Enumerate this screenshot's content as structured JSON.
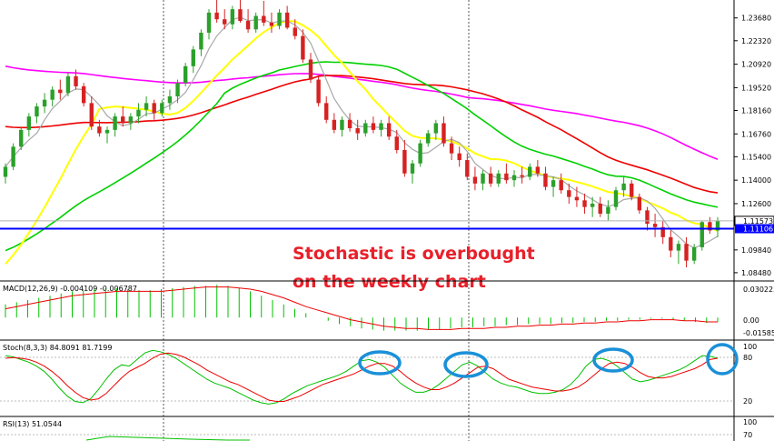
{
  "chart_data": {
    "type": "candlestick",
    "timeframe": "weekly",
    "annotation": {
      "line1": "Stochastic is overbought",
      "line2": "on the weekly chart"
    },
    "price_axis": {
      "ticks": [
        "1.23680",
        "1.22320",
        "1.20920",
        "1.19520",
        "1.18160",
        "1.16760",
        "1.15400",
        "1.14000",
        "1.12600",
        "1.09840",
        "1.08480"
      ],
      "tick_values": [
        1.2368,
        1.2232,
        1.2092,
        1.1952,
        1.1816,
        1.1676,
        1.154,
        1.14,
        1.126,
        1.0984,
        1.0848
      ],
      "range": [
        1.0815,
        1.2475
      ]
    },
    "badges": {
      "current_price": "1.11573",
      "support_level": "1.11106",
      "current_price_value": 1.11573,
      "support_value": 1.11106
    },
    "colors": {
      "bull": "#2aa02a",
      "bear": "#d62222",
      "sma20": "#a8a8a8",
      "sma50": "#ffff00",
      "sma100": "#00d000",
      "sma200": "#ee0000",
      "sma800": "#ff00ff",
      "support": "#0000ff",
      "annotation": "#e8202a",
      "circle": "#1a90d8",
      "macd_hist": "#00c000",
      "macd_signal": "#ee0000",
      "stoch_main": "#00c000",
      "stoch_signal": "#ee0000"
    },
    "macd": {
      "label": "MACD(12,26,9) -0.004109 -0.006787",
      "ticks": [
        "0.030223",
        "0.00",
        "-0.015857"
      ],
      "range": [
        -0.019,
        0.031
      ],
      "histogram": [
        0.012,
        0.014,
        0.016,
        0.018,
        0.02,
        0.022,
        0.024,
        0.025,
        0.026,
        0.027,
        0.027,
        0.026,
        0.025,
        0.025,
        0.026,
        0.027,
        0.028,
        0.029,
        0.029,
        0.03,
        0.029,
        0.027,
        0.024,
        0.02,
        0.016,
        0.012,
        0.008,
        0.004,
        0.0,
        -0.003,
        -0.006,
        -0.008,
        -0.01,
        -0.011,
        -0.012,
        -0.012,
        -0.012,
        -0.012,
        -0.011,
        -0.011,
        -0.01,
        -0.009,
        -0.009,
        -0.008,
        -0.008,
        -0.007,
        -0.007,
        -0.006,
        -0.006,
        -0.006,
        -0.005,
        -0.005,
        -0.004,
        -0.004,
        -0.003,
        -0.003,
        -0.002,
        -0.002,
        -0.001,
        -0.001,
        -0.002,
        -0.003,
        -0.004,
        -0.005,
        -0.004
      ],
      "signal": [
        0.008,
        0.01,
        0.012,
        0.014,
        0.016,
        0.018,
        0.02,
        0.021,
        0.022,
        0.023,
        0.024,
        0.024,
        0.024,
        0.024,
        0.024,
        0.025,
        0.026,
        0.027,
        0.028,
        0.028,
        0.028,
        0.027,
        0.026,
        0.024,
        0.021,
        0.018,
        0.014,
        0.01,
        0.007,
        0.004,
        0.001,
        -0.002,
        -0.004,
        -0.006,
        -0.008,
        -0.009,
        -0.01,
        -0.01,
        -0.011,
        -0.011,
        -0.011,
        -0.01,
        -0.01,
        -0.01,
        -0.009,
        -0.009,
        -0.008,
        -0.008,
        -0.007,
        -0.007,
        -0.006,
        -0.006,
        -0.005,
        -0.005,
        -0.004,
        -0.004,
        -0.003,
        -0.003,
        -0.002,
        -0.002,
        -0.002,
        -0.003,
        -0.003,
        -0.004,
        -0.004
      ]
    },
    "stoch": {
      "label": "Stoch(8,3,3) 84.8091 81.7199",
      "ticks": [
        "100",
        "80",
        "20"
      ],
      "main": [
        86,
        84,
        80,
        76,
        70,
        62,
        50,
        36,
        24,
        16,
        14,
        20,
        34,
        50,
        64,
        72,
        70,
        80,
        90,
        94,
        92,
        88,
        82,
        74,
        66,
        58,
        50,
        44,
        40,
        36,
        30,
        24,
        18,
        14,
        12,
        14,
        20,
        28,
        34,
        40,
        44,
        48,
        52,
        56,
        62,
        70,
        78,
        80,
        76,
        68,
        56,
        44,
        36,
        30,
        30,
        34,
        42,
        52,
        62,
        72,
        76,
        70,
        60,
        50,
        44,
        40,
        38,
        34,
        30,
        28,
        28,
        30,
        34,
        42,
        54,
        70,
        80,
        82,
        78,
        70,
        60,
        50,
        46,
        48,
        52,
        56,
        60,
        64,
        70,
        78,
        86,
        85,
        82
      ],
      "signal": [
        82,
        83,
        82,
        80,
        76,
        70,
        62,
        52,
        40,
        30,
        22,
        18,
        20,
        28,
        40,
        52,
        62,
        68,
        74,
        82,
        88,
        90,
        88,
        84,
        78,
        72,
        64,
        58,
        52,
        46,
        42,
        36,
        30,
        24,
        18,
        16,
        16,
        20,
        24,
        30,
        36,
        42,
        46,
        50,
        54,
        58,
        64,
        70,
        74,
        74,
        70,
        62,
        52,
        44,
        38,
        34,
        34,
        38,
        44,
        52,
        60,
        68,
        70,
        66,
        58,
        50,
        46,
        42,
        38,
        36,
        34,
        32,
        32,
        34,
        38,
        46,
        56,
        66,
        74,
        76,
        74,
        68,
        60,
        54,
        52,
        52,
        54,
        58,
        62,
        66,
        72,
        80,
        82
      ]
    },
    "rsi": {
      "label": "RSI(13) 51.0544",
      "ticks": [
        "100",
        "70"
      ]
    },
    "candles": [
      [
        1.142,
        1.15,
        1.138,
        1.148
      ],
      [
        1.148,
        1.162,
        1.146,
        1.16
      ],
      [
        1.16,
        1.172,
        1.158,
        1.17
      ],
      [
        1.17,
        1.18,
        1.166,
        1.178
      ],
      [
        1.178,
        1.186,
        1.174,
        1.184
      ],
      [
        1.184,
        1.192,
        1.18,
        1.188
      ],
      [
        1.188,
        1.196,
        1.184,
        1.194
      ],
      [
        1.194,
        1.2,
        1.188,
        1.192
      ],
      [
        1.192,
        1.204,
        1.19,
        1.202
      ],
      [
        1.202,
        1.206,
        1.194,
        1.196
      ],
      [
        1.196,
        1.198,
        1.184,
        1.186
      ],
      [
        1.186,
        1.19,
        1.17,
        1.172
      ],
      [
        1.172,
        1.176,
        1.166,
        1.168
      ],
      [
        1.168,
        1.172,
        1.162,
        1.17
      ],
      [
        1.17,
        1.18,
        1.166,
        1.178
      ],
      [
        1.178,
        1.184,
        1.172,
        1.174
      ],
      [
        1.174,
        1.18,
        1.17,
        1.178
      ],
      [
        1.178,
        1.186,
        1.174,
        1.182
      ],
      [
        1.182,
        1.19,
        1.178,
        1.186
      ],
      [
        1.186,
        1.188,
        1.176,
        1.18
      ],
      [
        1.18,
        1.188,
        1.178,
        1.186
      ],
      [
        1.186,
        1.194,
        1.182,
        1.19
      ],
      [
        1.19,
        1.2,
        1.186,
        1.198
      ],
      [
        1.198,
        1.21,
        1.196,
        1.208
      ],
      [
        1.208,
        1.22,
        1.204,
        1.218
      ],
      [
        1.218,
        1.23,
        1.214,
        1.228
      ],
      [
        1.228,
        1.242,
        1.224,
        1.24
      ],
      [
        1.24,
        1.248,
        1.234,
        1.236
      ],
      [
        1.236,
        1.242,
        1.23,
        1.233
      ],
      [
        1.233,
        1.244,
        1.23,
        1.242
      ],
      [
        1.242,
        1.248,
        1.234,
        1.235
      ],
      [
        1.235,
        1.242,
        1.228,
        1.23
      ],
      [
        1.23,
        1.24,
        1.228,
        1.238
      ],
      [
        1.238,
        1.247,
        1.232,
        1.234
      ],
      [
        1.234,
        1.24,
        1.228,
        1.232
      ],
      [
        1.232,
        1.242,
        1.23,
        1.24
      ],
      [
        1.24,
        1.244,
        1.23,
        1.231
      ],
      [
        1.231,
        1.236,
        1.224,
        1.226
      ],
      [
        1.226,
        1.23,
        1.21,
        1.212
      ],
      [
        1.212,
        1.216,
        1.198,
        1.2
      ],
      [
        1.2,
        1.202,
        1.184,
        1.186
      ],
      [
        1.186,
        1.19,
        1.174,
        1.176
      ],
      [
        1.176,
        1.18,
        1.168,
        1.17
      ],
      [
        1.17,
        1.178,
        1.166,
        1.176
      ],
      [
        1.176,
        1.18,
        1.169,
        1.171
      ],
      [
        1.171,
        1.176,
        1.164,
        1.168
      ],
      [
        1.168,
        1.176,
        1.166,
        1.174
      ],
      [
        1.174,
        1.178,
        1.168,
        1.17
      ],
      [
        1.17,
        1.176,
        1.166,
        1.174
      ],
      [
        1.174,
        1.178,
        1.164,
        1.166
      ],
      [
        1.166,
        1.17,
        1.156,
        1.158
      ],
      [
        1.158,
        1.164,
        1.142,
        1.144
      ],
      [
        1.144,
        1.152,
        1.138,
        1.15
      ],
      [
        1.15,
        1.164,
        1.148,
        1.162
      ],
      [
        1.162,
        1.17,
        1.16,
        1.168
      ],
      [
        1.168,
        1.176,
        1.164,
        1.174
      ],
      [
        1.174,
        1.178,
        1.16,
        1.162
      ],
      [
        1.162,
        1.166,
        1.152,
        1.156
      ],
      [
        1.156,
        1.16,
        1.148,
        1.152
      ],
      [
        1.152,
        1.156,
        1.14,
        1.142
      ],
      [
        1.142,
        1.148,
        1.134,
        1.138
      ],
      [
        1.138,
        1.146,
        1.134,
        1.144
      ],
      [
        1.144,
        1.148,
        1.136,
        1.138
      ],
      [
        1.138,
        1.146,
        1.136,
        1.144
      ],
      [
        1.144,
        1.15,
        1.138,
        1.14
      ],
      [
        1.14,
        1.146,
        1.136,
        1.143
      ],
      [
        1.143,
        1.148,
        1.138,
        1.142
      ],
      [
        1.142,
        1.15,
        1.14,
        1.148
      ],
      [
        1.148,
        1.152,
        1.142,
        1.144
      ],
      [
        1.144,
        1.148,
        1.134,
        1.136
      ],
      [
        1.136,
        1.142,
        1.13,
        1.14
      ],
      [
        1.14,
        1.144,
        1.132,
        1.134
      ],
      [
        1.134,
        1.138,
        1.126,
        1.13
      ],
      [
        1.13,
        1.136,
        1.124,
        1.128
      ],
      [
        1.128,
        1.132,
        1.12,
        1.124
      ],
      [
        1.124,
        1.13,
        1.118,
        1.126
      ],
      [
        1.126,
        1.13,
        1.118,
        1.12
      ],
      [
        1.12,
        1.128,
        1.116,
        1.124
      ],
      [
        1.124,
        1.136,
        1.122,
        1.134
      ],
      [
        1.134,
        1.142,
        1.13,
        1.138
      ],
      [
        1.138,
        1.14,
        1.128,
        1.13
      ],
      [
        1.13,
        1.132,
        1.12,
        1.122
      ],
      [
        1.122,
        1.124,
        1.11,
        1.114
      ],
      [
        1.114,
        1.12,
        1.106,
        1.112
      ],
      [
        1.112,
        1.116,
        1.102,
        1.106
      ],
      [
        1.106,
        1.11,
        1.094,
        1.098
      ],
      [
        1.098,
        1.104,
        1.09,
        1.102
      ],
      [
        1.102,
        1.106,
        1.088,
        1.092
      ],
      [
        1.092,
        1.102,
        1.09,
        1.1
      ],
      [
        1.1,
        1.116,
        1.098,
        1.115
      ],
      [
        1.115,
        1.118,
        1.108,
        1.11
      ],
      [
        1.11,
        1.118,
        1.106,
        1.1157
      ]
    ]
  }
}
